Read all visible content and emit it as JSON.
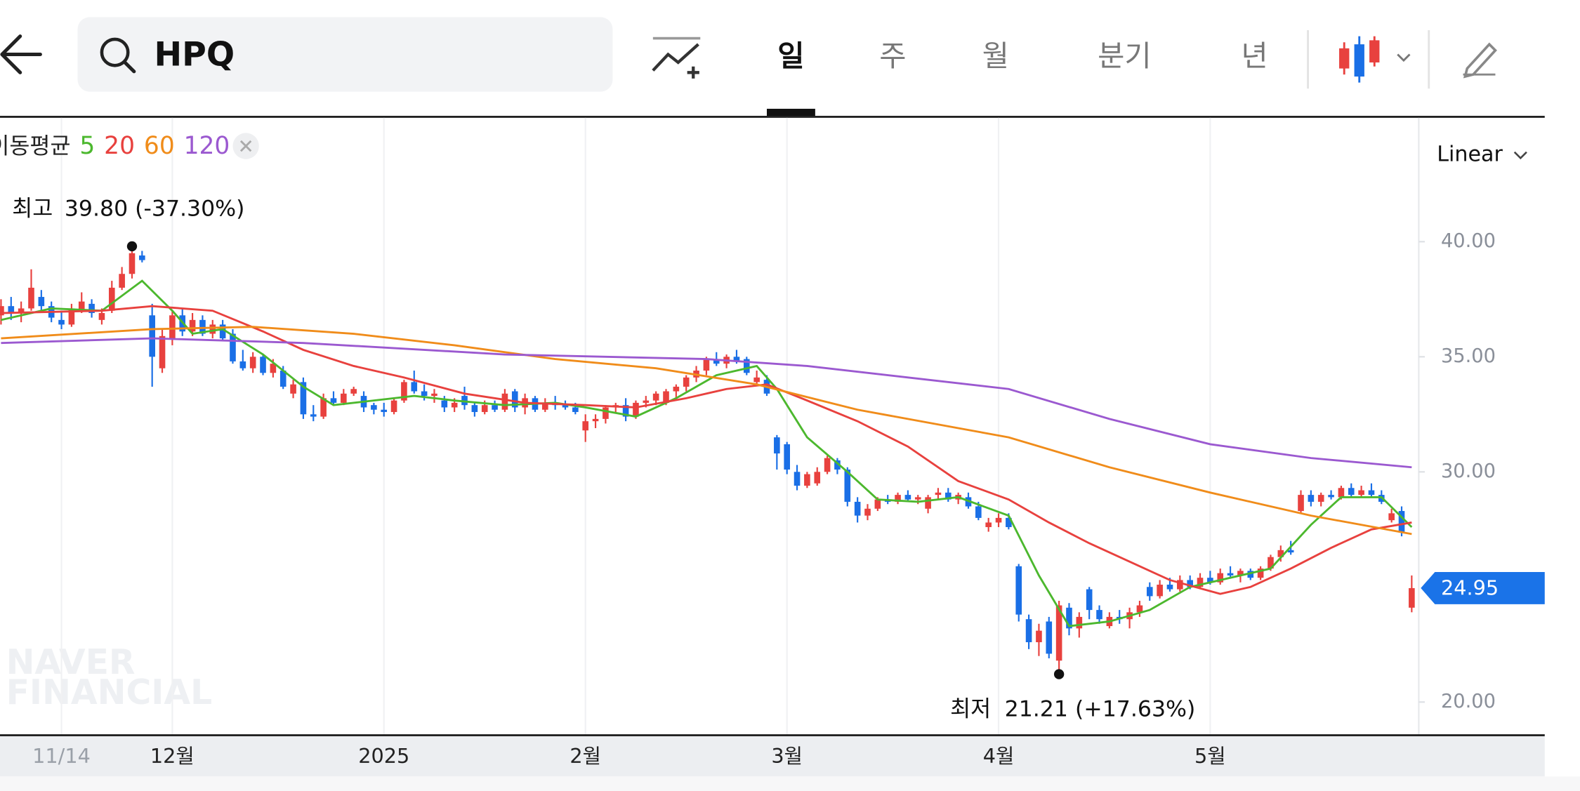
{
  "header": {
    "query": "HPQ",
    "tabs": [
      "일",
      "주",
      "월",
      "분기",
      "년"
    ]
  },
  "chart_data": {
    "type": "candlestick",
    "legend_title": "이동평균",
    "scale_label": "Linear",
    "watermark": [
      "NAVER",
      "FINANCIAL"
    ],
    "up_color": "#e8413e",
    "down_color": "#1a6fe6",
    "high_label": "최고",
    "high_text": "39.80 (-37.30%)",
    "low_label": "최저",
    "low_text": "21.21 (+17.63%)",
    "ylim": [
      18.56,
      45.38
    ],
    "yticks": [
      {
        "value": 20,
        "label": "20.00"
      },
      {
        "value": 30,
        "label": "30.00"
      },
      {
        "value": 35,
        "label": "35.00"
      },
      {
        "value": 40,
        "label": "40.00"
      }
    ],
    "categories": [
      null,
      null,
      null,
      null,
      null,
      null,
      "11/14",
      null,
      null,
      null,
      null,
      null,
      null,
      null,
      null,
      null,
      null,
      "12월",
      null,
      null,
      null,
      null,
      null,
      null,
      null,
      null,
      null,
      null,
      null,
      null,
      null,
      null,
      null,
      null,
      null,
      null,
      null,
      null,
      "2025",
      null,
      null,
      null,
      null,
      null,
      null,
      null,
      null,
      null,
      null,
      null,
      null,
      null,
      null,
      null,
      null,
      null,
      null,
      null,
      "2월",
      null,
      null,
      null,
      null,
      null,
      null,
      null,
      null,
      null,
      null,
      null,
      null,
      null,
      null,
      null,
      null,
      null,
      null,
      null,
      "3월",
      null,
      null,
      null,
      null,
      null,
      null,
      null,
      null,
      null,
      null,
      null,
      null,
      null,
      null,
      null,
      null,
      null,
      null,
      null,
      null,
      "4월",
      null,
      null,
      null,
      null,
      null,
      null,
      null,
      null,
      null,
      null,
      null,
      null,
      null,
      null,
      null,
      null,
      null,
      null,
      null,
      null,
      "5월",
      null,
      null,
      null,
      null,
      null,
      null,
      null,
      null,
      null,
      null,
      null,
      null,
      null,
      null,
      null,
      null,
      null,
      null,
      null,
      null
    ],
    "ohlc": [
      [
        36.8,
        37.5,
        36.4,
        37.2
      ],
      [
        37.2,
        37.6,
        36.6,
        36.9
      ],
      [
        36.9,
        37.4,
        36.5,
        37.1
      ],
      [
        37.1,
        38.8,
        37.0,
        38.0
      ],
      [
        37.6,
        37.9,
        36.9,
        37.2
      ],
      [
        37.2,
        37.4,
        36.5,
        36.7
      ],
      [
        36.6,
        37.0,
        36.2,
        36.4
      ],
      [
        36.4,
        37.3,
        36.3,
        37.1
      ],
      [
        37.0,
        37.8,
        36.9,
        37.4
      ],
      [
        37.3,
        37.5,
        36.7,
        36.9
      ],
      [
        36.6,
        37.1,
        36.4,
        36.9
      ],
      [
        37.0,
        38.3,
        36.9,
        38.0
      ],
      [
        38.0,
        38.9,
        37.9,
        38.6
      ],
      [
        38.6,
        39.8,
        38.4,
        39.5
      ],
      [
        39.4,
        39.6,
        39.1,
        39.2
      ],
      [
        36.8,
        37.3,
        33.7,
        35.0
      ],
      [
        34.5,
        36.2,
        34.3,
        35.9
      ],
      [
        35.8,
        37.0,
        35.5,
        36.8
      ],
      [
        36.8,
        37.1,
        35.9,
        36.1
      ],
      [
        36.1,
        36.9,
        35.9,
        36.6
      ],
      [
        36.6,
        36.8,
        35.9,
        36.0
      ],
      [
        36.0,
        36.6,
        35.8,
        36.4
      ],
      [
        36.4,
        36.6,
        35.7,
        35.8
      ],
      [
        36.0,
        36.2,
        34.7,
        34.8
      ],
      [
        34.8,
        35.3,
        34.4,
        34.5
      ],
      [
        34.5,
        35.2,
        34.3,
        35.0
      ],
      [
        35.0,
        35.1,
        34.2,
        34.3
      ],
      [
        34.3,
        34.9,
        34.1,
        34.7
      ],
      [
        34.4,
        34.6,
        33.6,
        33.7
      ],
      [
        33.4,
        34.0,
        33.2,
        33.8
      ],
      [
        33.9,
        34.1,
        32.3,
        32.5
      ],
      [
        32.5,
        32.9,
        32.2,
        32.4
      ],
      [
        32.4,
        33.4,
        32.3,
        33.2
      ],
      [
        33.2,
        33.5,
        32.9,
        33.0
      ],
      [
        33.0,
        33.6,
        32.9,
        33.4
      ],
      [
        33.4,
        33.7,
        33.3,
        33.6
      ],
      [
        33.3,
        33.5,
        32.6,
        32.8
      ],
      [
        32.9,
        33.0,
        32.5,
        32.7
      ],
      [
        32.7,
        33.0,
        32.4,
        32.6
      ],
      [
        32.6,
        33.2,
        32.5,
        33.1
      ],
      [
        33.1,
        34.0,
        33.0,
        33.9
      ],
      [
        33.9,
        34.4,
        33.4,
        33.5
      ],
      [
        33.5,
        33.8,
        33.1,
        33.3
      ],
      [
        33.3,
        33.6,
        33.0,
        33.4
      ],
      [
        33.1,
        33.3,
        32.6,
        32.8
      ],
      [
        32.8,
        33.2,
        32.6,
        33.0
      ],
      [
        33.3,
        33.7,
        32.7,
        32.9
      ],
      [
        32.9,
        33.0,
        32.4,
        32.6
      ],
      [
        32.6,
        33.1,
        32.5,
        32.9
      ],
      [
        32.9,
        33.1,
        32.6,
        32.7
      ],
      [
        32.7,
        33.6,
        32.6,
        33.4
      ],
      [
        33.5,
        33.6,
        32.6,
        32.8
      ],
      [
        32.8,
        33.4,
        32.5,
        33.2
      ],
      [
        33.2,
        33.3,
        32.6,
        32.7
      ],
      [
        32.7,
        33.2,
        32.6,
        33.0
      ],
      [
        33.0,
        33.3,
        32.7,
        32.9
      ],
      [
        32.9,
        33.1,
        32.7,
        32.8
      ],
      [
        32.8,
        33.0,
        32.5,
        32.6
      ],
      [
        31.8,
        32.5,
        31.3,
        32.2
      ],
      [
        32.2,
        32.5,
        31.9,
        32.3
      ],
      [
        32.3,
        32.9,
        32.1,
        32.8
      ],
      [
        32.8,
        33.0,
        32.6,
        32.9
      ],
      [
        32.9,
        33.2,
        32.2,
        32.4
      ],
      [
        32.4,
        33.1,
        32.3,
        33.0
      ],
      [
        33.0,
        33.3,
        32.8,
        33.1
      ],
      [
        33.1,
        33.5,
        32.9,
        33.4
      ],
      [
        33.0,
        33.6,
        32.9,
        33.5
      ],
      [
        33.5,
        33.8,
        33.2,
        33.7
      ],
      [
        33.7,
        34.2,
        33.5,
        34.1
      ],
      [
        34.1,
        34.6,
        33.9,
        34.4
      ],
      [
        34.4,
        35.0,
        34.2,
        34.9
      ],
      [
        34.9,
        35.2,
        34.6,
        34.7
      ],
      [
        34.7,
        35.1,
        34.5,
        35.0
      ],
      [
        35.0,
        35.3,
        34.7,
        34.8
      ],
      [
        34.9,
        35.0,
        34.2,
        34.3
      ],
      [
        33.9,
        34.4,
        33.8,
        34.1
      ],
      [
        34.0,
        34.2,
        33.3,
        33.4
      ],
      [
        31.5,
        31.6,
        30.1,
        30.8
      ],
      [
        31.2,
        31.3,
        29.9,
        30.1
      ],
      [
        30.0,
        30.3,
        29.2,
        29.4
      ],
      [
        29.4,
        30.0,
        29.3,
        29.9
      ],
      [
        29.5,
        30.2,
        29.4,
        30.0
      ],
      [
        30.0,
        30.7,
        29.9,
        30.6
      ],
      [
        30.5,
        30.6,
        29.9,
        30.1
      ],
      [
        30.1,
        30.2,
        28.5,
        28.7
      ],
      [
        28.7,
        28.9,
        27.8,
        28.1
      ],
      [
        28.1,
        28.6,
        27.9,
        28.4
      ],
      [
        28.4,
        28.9,
        28.3,
        28.8
      ],
      [
        28.8,
        29.0,
        28.6,
        28.7
      ],
      [
        28.7,
        29.1,
        28.6,
        29.0
      ],
      [
        29.0,
        29.2,
        28.7,
        28.8
      ],
      [
        28.8,
        29.0,
        28.6,
        28.9
      ],
      [
        28.4,
        29.0,
        28.2,
        28.9
      ],
      [
        29.0,
        29.3,
        28.8,
        29.1
      ],
      [
        29.1,
        29.3,
        28.7,
        28.8
      ],
      [
        28.8,
        29.1,
        28.6,
        29.0
      ],
      [
        28.9,
        29.1,
        28.4,
        28.5
      ],
      [
        28.5,
        28.7,
        27.9,
        28.0
      ],
      [
        27.6,
        28.0,
        27.4,
        27.8
      ],
      [
        27.8,
        28.2,
        27.6,
        28.0
      ],
      [
        28.0,
        28.2,
        27.5,
        27.6
      ],
      [
        25.9,
        26.0,
        23.5,
        23.8
      ],
      [
        23.6,
        23.8,
        22.3,
        22.6
      ],
      [
        22.6,
        23.4,
        22.0,
        23.1
      ],
      [
        23.5,
        23.7,
        21.9,
        22.1
      ],
      [
        21.8,
        24.4,
        21.21,
        24.2
      ],
      [
        24.1,
        24.3,
        22.9,
        23.2
      ],
      [
        23.2,
        23.9,
        22.8,
        23.7
      ],
      [
        24.9,
        25.0,
        23.6,
        24.0
      ],
      [
        24.0,
        24.2,
        23.4,
        23.6
      ],
      [
        23.3,
        23.9,
        23.2,
        23.7
      ],
      [
        23.7,
        24.0,
        23.4,
        23.6
      ],
      [
        23.6,
        24.1,
        23.2,
        23.9
      ],
      [
        23.9,
        24.4,
        23.7,
        24.2
      ],
      [
        25.0,
        25.2,
        24.4,
        24.6
      ],
      [
        24.6,
        25.3,
        24.5,
        25.1
      ],
      [
        25.1,
        25.4,
        24.8,
        24.9
      ],
      [
        24.9,
        25.5,
        24.8,
        25.3
      ],
      [
        25.3,
        25.5,
        24.9,
        25.0
      ],
      [
        25.0,
        25.6,
        24.9,
        25.4
      ],
      [
        25.4,
        25.7,
        25.1,
        25.2
      ],
      [
        25.2,
        25.8,
        25.1,
        25.6
      ],
      [
        25.6,
        25.9,
        25.4,
        25.5
      ],
      [
        25.5,
        25.8,
        25.2,
        25.7
      ],
      [
        25.7,
        25.8,
        25.3,
        25.4
      ],
      [
        25.4,
        25.9,
        25.3,
        25.8
      ],
      [
        25.8,
        26.4,
        25.7,
        26.3
      ],
      [
        26.3,
        26.8,
        26.1,
        26.6
      ],
      [
        26.6,
        27.0,
        26.4,
        26.5
      ],
      [
        28.3,
        29.2,
        28.2,
        29.0
      ],
      [
        29.0,
        29.2,
        28.5,
        28.7
      ],
      [
        28.7,
        29.1,
        28.5,
        29.0
      ],
      [
        29.0,
        29.2,
        28.8,
        28.9
      ],
      [
        28.9,
        29.4,
        28.8,
        29.3
      ],
      [
        29.3,
        29.5,
        28.9,
        29.0
      ],
      [
        29.0,
        29.4,
        28.9,
        29.2
      ],
      [
        29.2,
        29.5,
        28.9,
        29.0
      ],
      [
        29.0,
        29.2,
        28.6,
        28.7
      ],
      [
        27.9,
        28.4,
        27.8,
        28.2
      ],
      [
        28.3,
        28.5,
        27.2,
        27.4
      ],
      [
        24.1,
        25.5,
        23.9,
        24.95
      ]
    ],
    "series": [
      {
        "name": "5",
        "color": "#4cb82e",
        "x": [
          0,
          5,
          10,
          14,
          17,
          19,
          22,
          26,
          30,
          33,
          37,
          41,
          45,
          50,
          55,
          58,
          63,
          67,
          71,
          75,
          77,
          80,
          84,
          87,
          91,
          95,
          100,
          103,
          106,
          110,
          114,
          118,
          122,
          126,
          130,
          133,
          137,
          140
        ],
        "values": [
          36.6,
          37.1,
          37.0,
          38.3,
          37.0,
          36.0,
          36.2,
          35.1,
          33.7,
          32.9,
          33.1,
          33.3,
          33.1,
          32.9,
          33.0,
          32.8,
          32.4,
          33.2,
          34.2,
          34.6,
          33.6,
          31.5,
          30.0,
          28.8,
          28.7,
          28.9,
          28.1,
          25.5,
          23.3,
          23.5,
          24.0,
          25.0,
          25.4,
          25.8,
          27.7,
          28.9,
          28.9,
          27.6
        ]
      },
      {
        "name": "20",
        "color": "#e8413e",
        "x": [
          0,
          10,
          15,
          21,
          26,
          30,
          35,
          40,
          46,
          52,
          58,
          63,
          68,
          72,
          76,
          80,
          85,
          90,
          95,
          100,
          104,
          108,
          112,
          116,
          121,
          124,
          128,
          132,
          136,
          140
        ],
        "values": [
          36.9,
          37.0,
          37.2,
          37.0,
          36.1,
          35.3,
          34.6,
          34.1,
          33.4,
          33.0,
          32.9,
          32.8,
          33.2,
          33.6,
          33.8,
          33.1,
          32.2,
          31.1,
          29.6,
          28.8,
          27.8,
          26.9,
          26.1,
          25.3,
          24.7,
          25.0,
          25.8,
          26.7,
          27.5,
          27.8
        ]
      },
      {
        "name": "60",
        "color": "#f08c1a",
        "x": [
          0,
          15,
          25,
          35,
          45,
          55,
          65,
          75,
          85,
          95,
          100,
          110,
          120,
          130,
          140
        ],
        "values": [
          35.8,
          36.2,
          36.3,
          36.0,
          35.5,
          34.9,
          34.5,
          33.8,
          32.7,
          31.9,
          31.5,
          30.2,
          29.1,
          28.1,
          27.3
        ]
      },
      {
        "name": "120",
        "color": "#9b59d0",
        "x": [
          0,
          15,
          30,
          50,
          70,
          80,
          90,
          100,
          110,
          120,
          130,
          140
        ],
        "values": [
          35.6,
          35.8,
          35.6,
          35.1,
          34.9,
          34.6,
          34.1,
          33.6,
          32.3,
          31.2,
          30.6,
          30.2
        ]
      }
    ]
  }
}
